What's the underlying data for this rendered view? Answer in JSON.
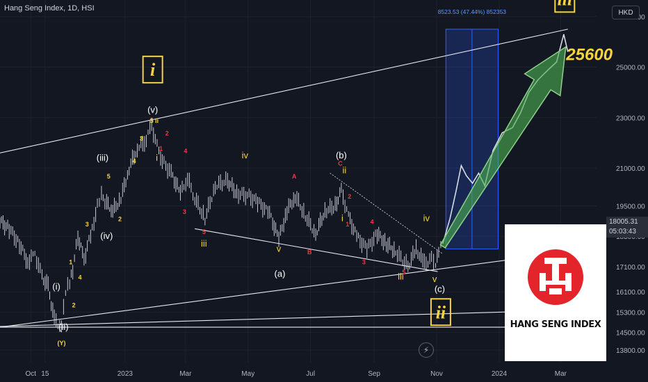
{
  "header": {
    "title": "Hang Seng Index, 1D, HSI",
    "currency": "HKD"
  },
  "logo": {
    "name": "HANG SENG INDEX"
  },
  "price_tag": {
    "price": "18005.31",
    "countdown": "05:03:43"
  },
  "measure_label": "8523.53 (47.44%) 852353",
  "target_label": "25600",
  "icon": {
    "bolt": "lightning-icon"
  },
  "colors": {
    "bg": "#131722",
    "grid": "#1e222d",
    "axis_text": "#b2b5be",
    "yellow": "#f7d33e",
    "red": "#f23645",
    "measure": "#2962ff",
    "arrow": "#4caf50"
  },
  "chart_data": {
    "type": "line",
    "title": "Hang Seng Index, 1D, HSI",
    "ylim": [
      13300,
      27600
    ],
    "y_ticks": [
      13800,
      14500,
      15300,
      16100,
      17100,
      18300,
      19500,
      21000,
      23000,
      25000,
      27000
    ],
    "y_tick_labels": [
      "13800.00",
      "14500.00",
      "15300.00",
      "16100.00",
      "17100.00",
      "18300.00",
      "19500.00",
      "21000.00",
      "23000.00",
      "25000.00",
      "27000.00"
    ],
    "x_ticks": [
      "Oct",
      "15",
      "2023",
      "Mar",
      "May",
      "Jul",
      "Sep",
      "Nov",
      "2024",
      "Mar"
    ],
    "price_path": [
      {
        "x": "2022-09-01",
        "y": 18900
      },
      {
        "x": "2022-09-10",
        "y": 18600
      },
      {
        "x": "2022-09-20",
        "y": 18000
      },
      {
        "x": "2022-09-28",
        "y": 17300
      },
      {
        "x": "2022-10-05",
        "y": 17600
      },
      {
        "x": "2022-10-12",
        "y": 16700
      },
      {
        "x": "2022-10-18",
        "y": 16300
      },
      {
        "x": "2022-10-24",
        "y": 15000
      },
      {
        "x": "2022-10-31",
        "y": 14700
      },
      {
        "x": "2022-11-04",
        "y": 16100
      },
      {
        "x": "2022-11-08",
        "y": 16500
      },
      {
        "x": "2022-11-11",
        "y": 17000
      },
      {
        "x": "2022-11-16",
        "y": 18300
      },
      {
        "x": "2022-11-22",
        "y": 17400
      },
      {
        "x": "2022-11-30",
        "y": 18600
      },
      {
        "x": "2022-12-05",
        "y": 19500
      },
      {
        "x": "2022-12-09",
        "y": 19900
      },
      {
        "x": "2022-12-14",
        "y": 19600
      },
      {
        "x": "2022-12-20",
        "y": 19300
      },
      {
        "x": "2022-12-28",
        "y": 19800
      },
      {
        "x": "2023-01-05",
        "y": 21000
      },
      {
        "x": "2023-01-13",
        "y": 21800
      },
      {
        "x": "2023-01-20",
        "y": 22000
      },
      {
        "x": "2023-01-27",
        "y": 22700
      },
      {
        "x": "2023-02-03",
        "y": 21600
      },
      {
        "x": "2023-02-08",
        "y": 21200
      },
      {
        "x": "2023-02-15",
        "y": 20800
      },
      {
        "x": "2023-02-24",
        "y": 20000
      },
      {
        "x": "2023-03-03",
        "y": 20600
      },
      {
        "x": "2023-03-10",
        "y": 19800
      },
      {
        "x": "2023-03-20",
        "y": 19000
      },
      {
        "x": "2023-03-30",
        "y": 20300
      },
      {
        "x": "2023-04-11",
        "y": 20500
      },
      {
        "x": "2023-04-20",
        "y": 20000
      },
      {
        "x": "2023-05-02",
        "y": 19900
      },
      {
        "x": "2023-05-12",
        "y": 19600
      },
      {
        "x": "2023-05-22",
        "y": 19200
      },
      {
        "x": "2023-05-31",
        "y": 18200
      },
      {
        "x": "2023-06-08",
        "y": 19300
      },
      {
        "x": "2023-06-16",
        "y": 19900
      },
      {
        "x": "2023-06-26",
        "y": 19100
      },
      {
        "x": "2023-07-06",
        "y": 18400
      },
      {
        "x": "2023-07-15",
        "y": 19300
      },
      {
        "x": "2023-07-25",
        "y": 19500
      },
      {
        "x": "2023-07-31",
        "y": 20100
      },
      {
        "x": "2023-08-07",
        "y": 19100
      },
      {
        "x": "2023-08-15",
        "y": 18300
      },
      {
        "x": "2023-08-25",
        "y": 17800
      },
      {
        "x": "2023-09-04",
        "y": 18400
      },
      {
        "x": "2023-09-13",
        "y": 18000
      },
      {
        "x": "2023-09-22",
        "y": 17700
      },
      {
        "x": "2023-10-04",
        "y": 17100
      },
      {
        "x": "2023-10-12",
        "y": 17800
      },
      {
        "x": "2023-10-20",
        "y": 17200
      },
      {
        "x": "2023-10-27",
        "y": 17400
      },
      {
        "x": "2023-10-31",
        "y": 17100
      },
      {
        "x": "2023-11-03",
        "y": 17700
      },
      {
        "x": "2023-11-07",
        "y": 18005
      }
    ],
    "projection_path": [
      {
        "x": "2023-11-07",
        "y": 18005
      },
      {
        "x": "2023-11-14",
        "y": 19000
      },
      {
        "x": "2023-11-20",
        "y": 20100
      },
      {
        "x": "2023-11-25",
        "y": 21100
      },
      {
        "x": "2023-11-30",
        "y": 20700
      },
      {
        "x": "2023-12-06",
        "y": 20400
      },
      {
        "x": "2023-12-12",
        "y": 20800
      },
      {
        "x": "2023-12-18",
        "y": 20300
      },
      {
        "x": "2023-12-26",
        "y": 21700
      },
      {
        "x": "2024-01-04",
        "y": 22400
      },
      {
        "x": "2024-01-14",
        "y": 22600
      },
      {
        "x": "2024-01-22",
        "y": 23200
      },
      {
        "x": "2024-01-30",
        "y": 24000
      },
      {
        "x": "2024-02-08",
        "y": 24500
      },
      {
        "x": "2024-02-18",
        "y": 24900
      },
      {
        "x": "2024-02-26",
        "y": 25200
      },
      {
        "x": "2024-03-04",
        "y": 26300
      },
      {
        "x": "2024-03-08",
        "y": 25600
      }
    ],
    "trend_lines": [
      {
        "name": "upper-channel",
        "from": {
          "x": "2022-09-01",
          "y": 21600
        },
        "to": {
          "x": "2024-03-08",
          "y": 26500
        },
        "style": "solid"
      },
      {
        "name": "lower-channel",
        "from": {
          "x": "2022-09-01",
          "y": 14700
        },
        "to": {
          "x": "2024-03-31",
          "y": 17800
        },
        "style": "solid"
      },
      {
        "name": "horizontal-support",
        "from": {
          "x": "2022-09-01",
          "y": 14700
        },
        "to": {
          "x": "2024-03-31",
          "y": 14700
        },
        "style": "solid"
      },
      {
        "name": "base-line",
        "from": {
          "x": "2022-09-01",
          "y": 14730
        },
        "to": {
          "x": "2024-03-31",
          "y": 15400
        },
        "style": "solid"
      },
      {
        "name": "wedge-upper",
        "from": {
          "x": "2023-07-20",
          "y": 20800
        },
        "to": {
          "x": "2023-11-07",
          "y": 17600
        },
        "style": "dotted"
      },
      {
        "name": "wedge-lower",
        "from": {
          "x": "2023-03-10",
          "y": 18600
        },
        "to": {
          "x": "2023-11-02",
          "y": 16900
        },
        "style": "solid"
      }
    ],
    "measure_box": {
      "x0": "2023-11-10",
      "x1": "2023-12-31",
      "y0": 17800,
      "y1": 26500
    },
    "arrow": {
      "from": {
        "x": "2023-11-07",
        "y": 17900
      },
      "to": {
        "x": "2024-03-06",
        "y": 25800
      }
    },
    "wave_labels": [
      {
        "text": "i",
        "x": "2023-01-28",
        "y": 24900,
        "color": "yellow",
        "boxed": true
      },
      {
        "text": "iii",
        "x": "2024-03-05",
        "y": 27700,
        "color": "yellow",
        "boxed": true
      },
      {
        "text": "ii",
        "x": "2023-11-05",
        "y": 15300,
        "color": "yellow",
        "boxed": true
      },
      {
        "text": "25600",
        "x": "2024-03-29",
        "y": 25500,
        "color": "yellow",
        "boxed": false,
        "big": true
      },
      {
        "text": "(v)",
        "x": "2023-01-28",
        "y": 23300,
        "color": "white"
      },
      {
        "text": "(iii)",
        "x": "2022-12-10",
        "y": 21400,
        "color": "white"
      },
      {
        "text": "(iv)",
        "x": "2022-12-14",
        "y": 18300,
        "color": "white"
      },
      {
        "text": "(i)",
        "x": "2022-10-26",
        "y": 16300,
        "color": "white"
      },
      {
        "text": "(ii)",
        "x": "2022-11-02",
        "y": 14700,
        "color": "white"
      },
      {
        "text": "(b)",
        "x": "2023-07-31",
        "y": 21500,
        "color": "white"
      },
      {
        "text": "(a)",
        "x": "2023-06-01",
        "y": 16800,
        "color": "white"
      },
      {
        "text": "(c)",
        "x": "2023-11-04",
        "y": 16200,
        "color": "white"
      },
      {
        "text": "(Y)",
        "x": "2022-10-31",
        "y": 14100,
        "color": "yellow",
        "small": true
      },
      {
        "text": "5",
        "x": "2023-01-27",
        "y": 22900,
        "color": "yellow",
        "small": true
      },
      {
        "text": "ii",
        "x": "2023-02-01",
        "y": 22900,
        "color": "yellow",
        "small": true
      },
      {
        "text": "3",
        "x": "2023-01-17",
        "y": 22200,
        "color": "yellow",
        "small": true
      },
      {
        "text": "4",
        "x": "2023-01-10",
        "y": 21300,
        "color": "yellow",
        "small": true
      },
      {
        "text": "5",
        "x": "2022-12-16",
        "y": 20700,
        "color": "yellow",
        "small": true
      },
      {
        "text": "2",
        "x": "2022-12-27",
        "y": 19000,
        "color": "yellow",
        "small": true
      },
      {
        "text": "3",
        "x": "2022-11-25",
        "y": 18800,
        "color": "yellow",
        "small": true
      },
      {
        "text": "1",
        "x": "2022-11-09",
        "y": 17300,
        "color": "yellow",
        "small": true
      },
      {
        "text": "4",
        "x": "2022-11-18",
        "y": 16700,
        "color": "yellow",
        "small": true
      },
      {
        "text": "2",
        "x": "2022-11-12",
        "y": 15600,
        "color": "yellow",
        "small": true
      },
      {
        "text": "i",
        "x": "2023-02-01",
        "y": 21400,
        "color": "yellow"
      },
      {
        "text": "iv",
        "x": "2023-04-28",
        "y": 21500,
        "color": "yellow"
      },
      {
        "text": "iii",
        "x": "2023-03-19",
        "y": 18000,
        "color": "yellow"
      },
      {
        "text": "v",
        "x": "2023-05-31",
        "y": 17800,
        "color": "yellow"
      },
      {
        "text": "ii",
        "x": "2023-08-03",
        "y": 20900,
        "color": "yellow"
      },
      {
        "text": "i",
        "x": "2023-08-01",
        "y": 19000,
        "color": "yellow"
      },
      {
        "text": "iv",
        "x": "2023-10-22",
        "y": 19000,
        "color": "yellow"
      },
      {
        "text": "iii",
        "x": "2023-09-27",
        "y": 16700,
        "color": "yellow"
      },
      {
        "text": "v",
        "x": "2023-10-30",
        "y": 16600,
        "color": "yellow"
      },
      {
        "text": "1",
        "x": "2023-02-05",
        "y": 21800,
        "color": "red",
        "small": true
      },
      {
        "text": "2",
        "x": "2023-02-11",
        "y": 22400,
        "color": "red",
        "small": true
      },
      {
        "text": "4",
        "x": "2023-03-01",
        "y": 21700,
        "color": "red",
        "small": true
      },
      {
        "text": "3",
        "x": "2023-02-28",
        "y": 19300,
        "color": "red",
        "small": true
      },
      {
        "text": "5",
        "x": "2023-03-19",
        "y": 18500,
        "color": "red",
        "small": true
      },
      {
        "text": "A",
        "x": "2023-06-15",
        "y": 20700,
        "color": "red",
        "small": true
      },
      {
        "text": "B",
        "x": "2023-06-30",
        "y": 17700,
        "color": "red",
        "small": true
      },
      {
        "text": "C",
        "x": "2023-07-30",
        "y": 21200,
        "color": "red",
        "small": true
      },
      {
        "text": "2",
        "x": "2023-08-08",
        "y": 19900,
        "color": "red",
        "small": true
      },
      {
        "text": "1",
        "x": "2023-08-06",
        "y": 18800,
        "color": "red",
        "small": true
      },
      {
        "text": "4",
        "x": "2023-08-30",
        "y": 18900,
        "color": "red",
        "small": true
      },
      {
        "text": "3",
        "x": "2023-08-22",
        "y": 17300,
        "color": "red",
        "small": true
      },
      {
        "text": "5",
        "x": "2023-09-30",
        "y": 16900,
        "color": "red",
        "small": true
      }
    ]
  }
}
